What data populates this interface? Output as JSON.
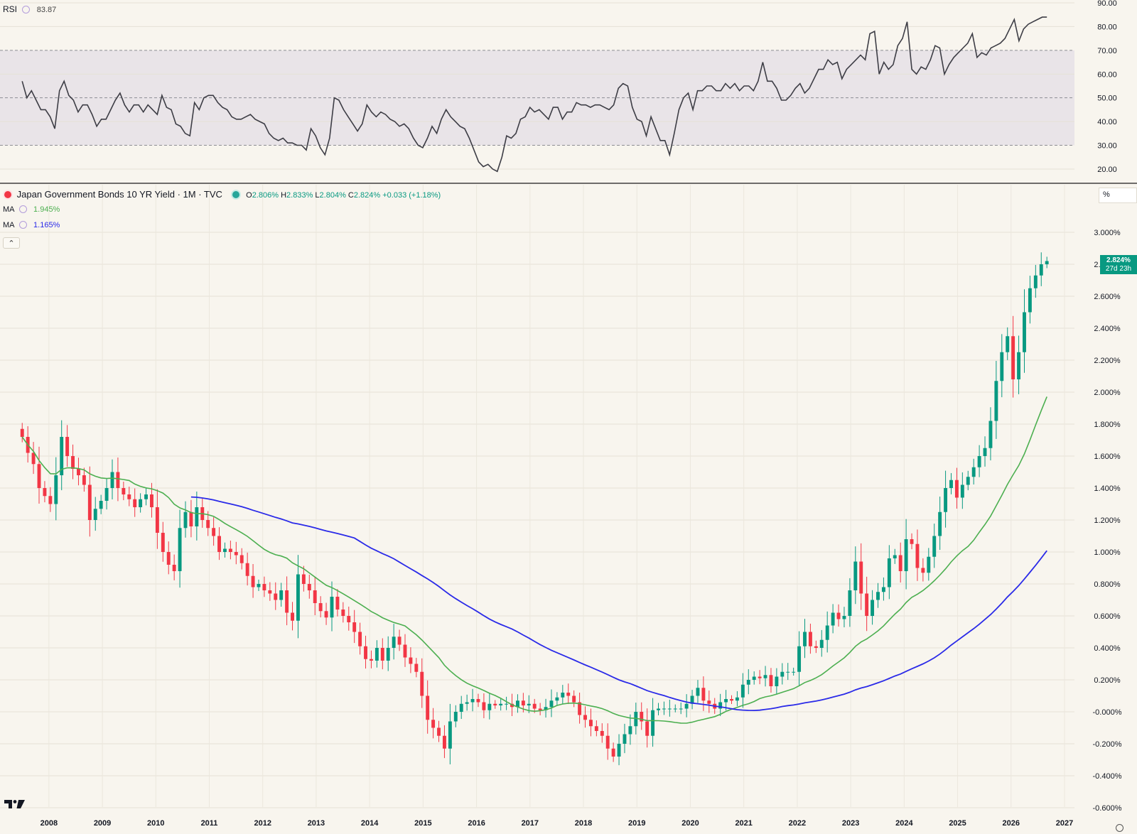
{
  "chart_data": [
    {
      "type": "line",
      "title": "RSI",
      "current_value": "83.87",
      "y_ticks": [
        "20.00",
        "30.00",
        "40.00",
        "50.00",
        "60.00",
        "70.00",
        "80.00",
        "90.00"
      ],
      "ylim": [
        14,
        90
      ],
      "band": [
        30,
        70
      ],
      "x_start": 2007.5,
      "x_end": 2026.67,
      "values": [
        57,
        50,
        53,
        49,
        45,
        45,
        42,
        37,
        53,
        57,
        51,
        49,
        44,
        47,
        47,
        43,
        38,
        41,
        41,
        45,
        49,
        52,
        47,
        44,
        47,
        47,
        44,
        47,
        45,
        43,
        51,
        46,
        45,
        39,
        38,
        35,
        34,
        48,
        45,
        50,
        51,
        51,
        48,
        46,
        45,
        42,
        41,
        41,
        42,
        43,
        41,
        40,
        39,
        35,
        33,
        32,
        33,
        31,
        31,
        30,
        30,
        28,
        37,
        34,
        29,
        26,
        33,
        50,
        49,
        45,
        42,
        39,
        36,
        39,
        47,
        44,
        42,
        44,
        43,
        41,
        40,
        38,
        39,
        37,
        33,
        30,
        29,
        33,
        38,
        35,
        41,
        45,
        42,
        40,
        38,
        37,
        33,
        28,
        23,
        21,
        22,
        20,
        19,
        25,
        34,
        33,
        35,
        41,
        42,
        46,
        44,
        45,
        43,
        41,
        46,
        46,
        41,
        44,
        44,
        48,
        47,
        47,
        46,
        47,
        47,
        46,
        45,
        47,
        54,
        56,
        55,
        46,
        41,
        40,
        34,
        42,
        37,
        32,
        32,
        26,
        35,
        45,
        50,
        52,
        45,
        53,
        53,
        55,
        55,
        53,
        53,
        56,
        54,
        56,
        53,
        55,
        55,
        53,
        57,
        65,
        57,
        57,
        54,
        49,
        49,
        51,
        54,
        56,
        52,
        54,
        58,
        62,
        62,
        66,
        64,
        65,
        58,
        62,
        64,
        66,
        68,
        66,
        77,
        78,
        60,
        65,
        62,
        64,
        72,
        75,
        82,
        62,
        60,
        63,
        62,
        66,
        72,
        71,
        60,
        64,
        67,
        69,
        71,
        73,
        77,
        67,
        69,
        68,
        71,
        72,
        73,
        75,
        79,
        83,
        74,
        79,
        81,
        82,
        83,
        84,
        84
      ]
    },
    {
      "type": "candlestick",
      "title": "Japan Government Bonds 10 YR Yield · 1M · TVC",
      "ohlc_readout": {
        "o_label": "O",
        "o": "2.806%",
        "h_label": "H",
        "h": "2.833%",
        "l_label": "L",
        "l": "2.804%",
        "c_label": "C",
        "c": "2.824%",
        "chg": "+0.033 (+1.18%)"
      },
      "last_price": "2.824%",
      "countdown": "27d 23h",
      "unit": "%",
      "y_ticks": [
        "-0.600%",
        "-0.400%",
        "-0.200%",
        "-0.000%",
        "0.200%",
        "0.400%",
        "0.600%",
        "0.800%",
        "1.000%",
        "1.200%",
        "1.400%",
        "1.600%",
        "1.800%",
        "2.000%",
        "2.200%",
        "2.400%",
        "2.600%",
        "2.800%",
        "3.000%"
      ],
      "ylim": [
        -0.6,
        3.0
      ],
      "x_ticks": [
        "2008",
        "2009",
        "2010",
        "2011",
        "2012",
        "2013",
        "2014",
        "2015",
        "2016",
        "2017",
        "2018",
        "2019",
        "2020",
        "2021",
        "2022",
        "2023",
        "2024",
        "2025",
        "2026",
        "2027"
      ],
      "x_start": 2007.5,
      "x_end": 2026.67,
      "close": [
        1.72,
        1.62,
        1.55,
        1.4,
        1.35,
        1.3,
        1.48,
        1.72,
        1.6,
        1.52,
        1.48,
        1.42,
        1.2,
        1.27,
        1.32,
        1.4,
        1.5,
        1.4,
        1.36,
        1.33,
        1.28,
        1.33,
        1.36,
        1.28,
        1.12,
        1.0,
        0.92,
        0.88,
        1.15,
        1.25,
        1.16,
        1.28,
        1.2,
        1.15,
        1.1,
        1.0,
        1.02,
        1.0,
        0.98,
        0.93,
        0.85,
        0.78,
        0.8,
        0.76,
        0.74,
        0.7,
        0.76,
        0.62,
        0.57,
        0.86,
        0.8,
        0.76,
        0.68,
        0.63,
        0.59,
        0.72,
        0.64,
        0.6,
        0.56,
        0.5,
        0.41,
        0.33,
        0.32,
        0.4,
        0.32,
        0.4,
        0.47,
        0.42,
        0.34,
        0.3,
        0.25,
        0.1,
        -0.05,
        -0.1,
        -0.15,
        -0.23,
        -0.06,
        0.0,
        0.05,
        0.06,
        0.08,
        0.06,
        0.01,
        0.05,
        0.04,
        0.05,
        0.05,
        0.03,
        0.07,
        0.04,
        0.05,
        0.02,
        0.01,
        0.03,
        0.07,
        0.09,
        0.12,
        0.1,
        0.06,
        -0.02,
        -0.05,
        -0.09,
        -0.12,
        -0.15,
        -0.23,
        -0.28,
        -0.2,
        -0.14,
        -0.09,
        0.0,
        -0.06,
        -0.15,
        0.01,
        0.02,
        0.02,
        0.02,
        0.02,
        0.02,
        0.05,
        0.1,
        0.15,
        0.07,
        0.05,
        0.02,
        0.06,
        0.08,
        0.07,
        0.09,
        0.17,
        0.2,
        0.22,
        0.21,
        0.23,
        0.16,
        0.22,
        0.25,
        0.25,
        0.25,
        0.41,
        0.5,
        0.41,
        0.4,
        0.45,
        0.54,
        0.62,
        0.58,
        0.6,
        0.76,
        0.94,
        0.74,
        0.6,
        0.7,
        0.75,
        0.78,
        0.96,
        0.98,
        0.88,
        1.08,
        1.05,
        0.9,
        0.87,
        0.97,
        1.1,
        1.25,
        1.4,
        1.45,
        1.34,
        1.42,
        1.47,
        1.53,
        1.6,
        1.65,
        1.82,
        2.07,
        2.25,
        2.35,
        2.08,
        2.25,
        2.5,
        2.65,
        2.73,
        2.8,
        2.82
      ]
    }
  ],
  "main_pane": {
    "ma_label": "MA",
    "ma1": {
      "value": "1.945%",
      "color": "#4caf50"
    },
    "ma2": {
      "value": "1.165%",
      "color": "#2a2ae8"
    },
    "up_color": "#089981",
    "down_color": "#f23645"
  },
  "icons": {
    "symbol_dot": "status-dot-red-icon",
    "market_dot": "market-open-dot-icon",
    "collapse": "chevron-up-icon",
    "logo": "tradingview-logo-icon",
    "settings": "gear-icon"
  }
}
